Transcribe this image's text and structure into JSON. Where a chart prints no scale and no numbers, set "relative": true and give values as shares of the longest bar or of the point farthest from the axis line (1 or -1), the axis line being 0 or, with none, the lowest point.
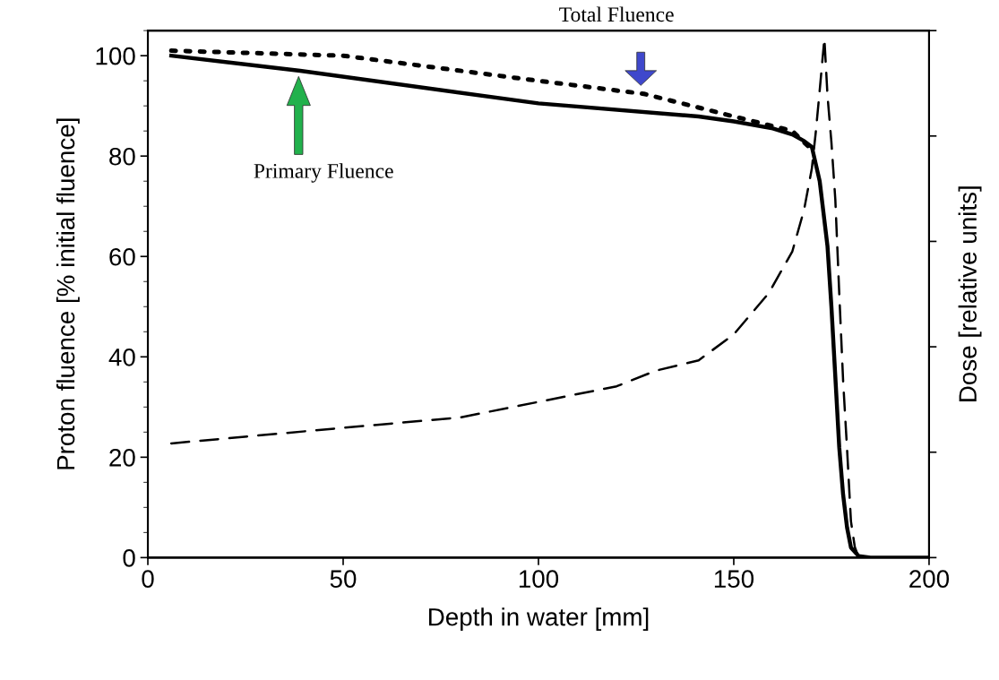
{
  "chart_data": [
    {
      "type": "line",
      "xlabel": "Depth in water [mm]",
      "ylabel": "Proton fluence [% initial fluence]",
      "xlim": [
        0,
        200
      ],
      "xticks": [
        0,
        50,
        100,
        150,
        200
      ],
      "ylim": [
        0,
        105
      ],
      "yticks": [
        0,
        20,
        40,
        60,
        80,
        100
      ],
      "grid": false,
      "legend": false,
      "series": [
        {
          "color": "#000000",
          "line_style": "solid",
          "x": [
            6,
            39,
            100,
            141,
            150,
            160,
            165,
            168,
            170,
            172,
            174,
            175,
            176,
            177,
            178,
            179,
            180,
            182,
            185,
            200
          ],
          "values": [
            100,
            97,
            90.5,
            87.9,
            86.9,
            85.5,
            84.3,
            83,
            81.8,
            75,
            62,
            50,
            36,
            22,
            12.5,
            6,
            2,
            0.3,
            0,
            0
          ]
        },
        {
          "color": "#000000",
          "line_style": "dotted",
          "x": [
            6,
            50,
            100,
            127,
            150,
            165,
            169
          ],
          "values": [
            101,
            100,
            95,
            92.4,
            87.9,
            85,
            82
          ]
        }
      ],
      "annotations": [
        "Total Fluence",
        "Primary Fluence"
      ]
    },
    {
      "type": "line",
      "relative": true,
      "y2label": "Dose [relative units]",
      "xlim": [
        0,
        200
      ],
      "series": [
        {
          "color": "#000000",
          "line_style": "dashed",
          "x": [
            6,
            50,
            80,
            100,
            120,
            130,
            141,
            150,
            159,
            165,
            168,
            170,
            171,
            172,
            173.2,
            174,
            175,
            176,
            177,
            178,
            179,
            180,
            181,
            182,
            185,
            200
          ],
          "values": [
            0.22,
            0.25,
            0.27,
            0.3,
            0.33,
            0.36,
            0.38,
            0.43,
            0.51,
            0.59,
            0.67,
            0.75,
            0.82,
            0.9,
            1,
            0.89,
            0.8,
            0.69,
            0.51,
            0.34,
            0.21,
            0.07,
            0.02,
            0,
            0,
            0
          ]
        }
      ]
    }
  ]
}
